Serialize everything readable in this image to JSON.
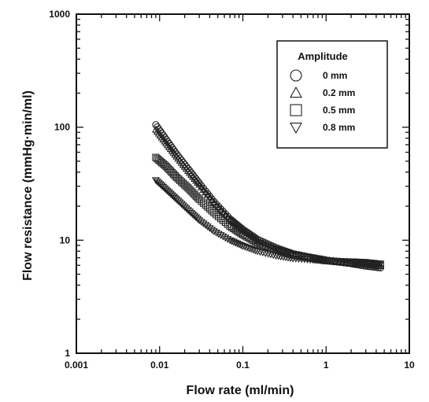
{
  "chart_data": {
    "type": "scatter",
    "title": "",
    "xlabel": "Flow rate (ml/min)",
    "ylabel": "Flow resistance (mmHg·min/ml)",
    "xscale": "log",
    "yscale": "log",
    "xlim": [
      0.001,
      10
    ],
    "ylim": [
      1,
      1000
    ],
    "x_ticks": [
      "0.001",
      "0.01",
      "0.1",
      "1",
      "10"
    ],
    "y_ticks": [
      "1",
      "10",
      "100",
      "1000"
    ],
    "legend": {
      "title": "Amplitude",
      "position": "top-right"
    },
    "series": [
      {
        "name": "0 mm",
        "marker": "circle",
        "points": [
          [
            0.009,
            105
          ],
          [
            0.012,
            78
          ],
          [
            0.016,
            58
          ],
          [
            0.022,
            43
          ],
          [
            0.03,
            32
          ],
          [
            0.045,
            22
          ],
          [
            0.07,
            15.5
          ],
          [
            0.1,
            12.5
          ],
          [
            0.15,
            10.2
          ],
          [
            0.25,
            8.6
          ],
          [
            0.4,
            7.6
          ],
          [
            0.7,
            7.0
          ],
          [
            1.0,
            6.6
          ],
          [
            2.0,
            6.2
          ],
          [
            3.0,
            5.9
          ],
          [
            4.5,
            5.7
          ]
        ]
      },
      {
        "name": "0.2 mm",
        "marker": "triangle-up",
        "points": [
          [
            0.009,
            95
          ],
          [
            0.012,
            72
          ],
          [
            0.016,
            55
          ],
          [
            0.022,
            41
          ],
          [
            0.03,
            31
          ],
          [
            0.045,
            21.5
          ],
          [
            0.07,
            15.3
          ],
          [
            0.1,
            12.3
          ],
          [
            0.15,
            10
          ],
          [
            0.25,
            8.5
          ],
          [
            0.4,
            7.6
          ],
          [
            0.7,
            7.0
          ],
          [
            1.0,
            6.7
          ],
          [
            2.0,
            6.3
          ],
          [
            3.0,
            6.1
          ],
          [
            4.5,
            5.9
          ]
        ]
      },
      {
        "name": "0.5 mm",
        "marker": "square",
        "points": [
          [
            0.009,
            54
          ],
          [
            0.012,
            45
          ],
          [
            0.016,
            36
          ],
          [
            0.022,
            29
          ],
          [
            0.03,
            23
          ],
          [
            0.045,
            17.5
          ],
          [
            0.07,
            13.3
          ],
          [
            0.1,
            11.2
          ],
          [
            0.15,
            9.5
          ],
          [
            0.25,
            8.2
          ],
          [
            0.4,
            7.4
          ],
          [
            0.7,
            6.9
          ],
          [
            1.0,
            6.6
          ],
          [
            2.0,
            6.3
          ],
          [
            3.0,
            6.2
          ],
          [
            4.5,
            6.0
          ]
        ]
      },
      {
        "name": "0.8 mm",
        "marker": "triangle-down",
        "points": [
          [
            0.009,
            34
          ],
          [
            0.012,
            28
          ],
          [
            0.016,
            23
          ],
          [
            0.022,
            18.5
          ],
          [
            0.03,
            15
          ],
          [
            0.045,
            12
          ],
          [
            0.07,
            10
          ],
          [
            0.1,
            8.9
          ],
          [
            0.15,
            8.0
          ],
          [
            0.25,
            7.3
          ],
          [
            0.4,
            6.9
          ],
          [
            0.7,
            6.7
          ],
          [
            1.0,
            6.6
          ],
          [
            2.0,
            6.5
          ],
          [
            3.0,
            6.4
          ],
          [
            4.5,
            6.2
          ]
        ]
      }
    ]
  }
}
